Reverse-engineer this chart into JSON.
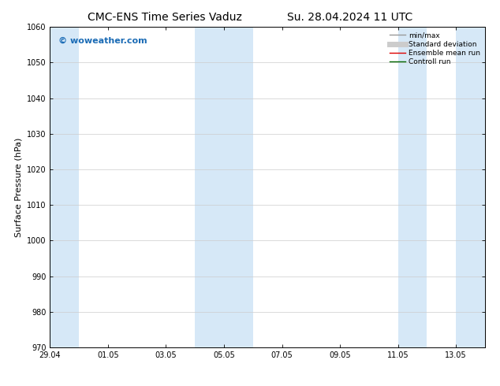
{
  "title_left": "CMC-ENS Time Series Vaduz",
  "title_right": "Su. 28.04.2024 11 UTC",
  "ylabel": "Surface Pressure (hPa)",
  "ylim": [
    970,
    1060
  ],
  "yticks": [
    970,
    980,
    990,
    1000,
    1010,
    1020,
    1030,
    1040,
    1050,
    1060
  ],
  "xtick_labels": [
    "29.04",
    "01.05",
    "03.05",
    "05.05",
    "07.05",
    "09.05",
    "11.05",
    "13.05"
  ],
  "xtick_dates": [
    "2024-04-29",
    "2024-05-01",
    "2024-05-03",
    "2024-05-05",
    "2024-05-07",
    "2024-05-09",
    "2024-05-11",
    "2024-05-13"
  ],
  "xlim_start": "2024-04-29",
  "xlim_end": "2024-05-14",
  "shaded_regions": [
    {
      "start": "2024-04-29",
      "end": "2024-04-30"
    },
    {
      "start": "2024-05-04",
      "end": "2024-05-06"
    },
    {
      "start": "2024-05-11",
      "end": "2024-05-12"
    },
    {
      "start": "2024-05-13",
      "end": "2024-05-14"
    }
  ],
  "shade_color": "#d6e8f7",
  "watermark_text": "© woweather.com",
  "watermark_color": "#1a6bb5",
  "legend_items": [
    {
      "label": "min/max",
      "color": "#999999",
      "lw": 1.0
    },
    {
      "label": "Standard deviation",
      "color": "#cccccc",
      "lw": 5
    },
    {
      "label": "Ensemble mean run",
      "color": "#dd0000",
      "lw": 1.0
    },
    {
      "label": "Controll run",
      "color": "#006600",
      "lw": 1.0
    }
  ],
  "bg_color": "#ffffff",
  "spine_color": "#000000",
  "grid_color": "#cccccc",
  "title_fontsize": 10,
  "label_fontsize": 8,
  "tick_fontsize": 7,
  "watermark_fontsize": 8,
  "legend_fontsize": 6.5
}
